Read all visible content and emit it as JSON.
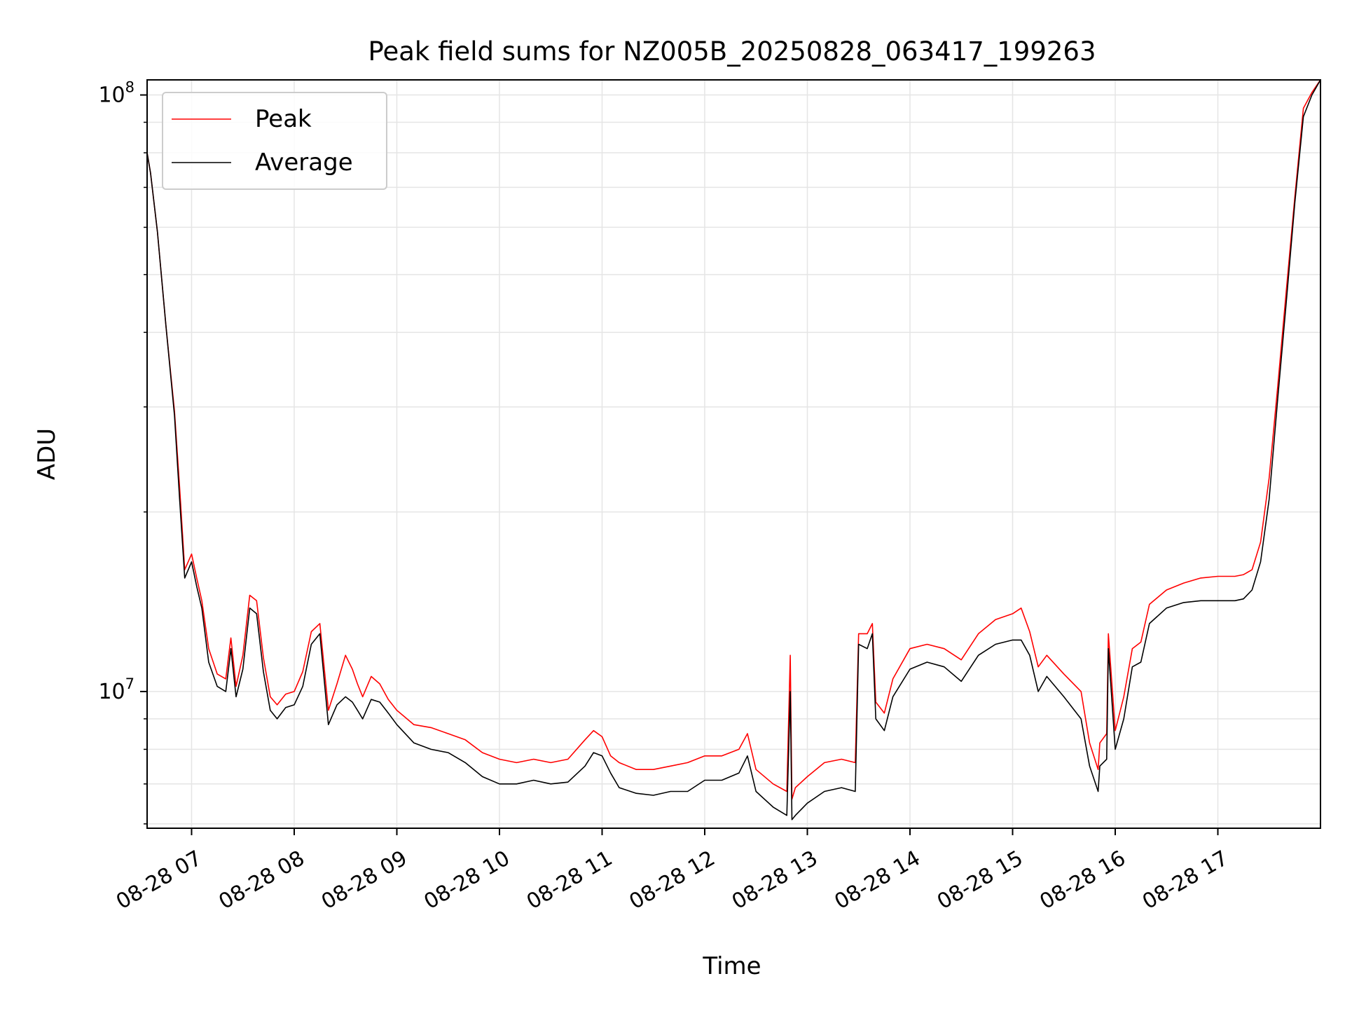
{
  "chart_data": {
    "type": "line",
    "title": "Peak field sums for NZ005B_20250828_063417_199263",
    "xlabel": "Time",
    "ylabel": "ADU",
    "y_scale": "log",
    "grid": true,
    "legend": "upper-left",
    "xlim": [
      "2025-08-28 06:34",
      "2025-08-28 18:00"
    ],
    "ylim": [
      5900000,
      106000000
    ],
    "x_ticks": [
      {
        "value": "2025-08-28 07:00",
        "label": "08-28 07"
      },
      {
        "value": "2025-08-28 08:00",
        "label": "08-28 08"
      },
      {
        "value": "2025-08-28 09:00",
        "label": "08-28 09"
      },
      {
        "value": "2025-08-28 10:00",
        "label": "08-28 10"
      },
      {
        "value": "2025-08-28 11:00",
        "label": "08-28 11"
      },
      {
        "value": "2025-08-28 12:00",
        "label": "08-28 12"
      },
      {
        "value": "2025-08-28 13:00",
        "label": "08-28 13"
      },
      {
        "value": "2025-08-28 14:00",
        "label": "08-28 14"
      },
      {
        "value": "2025-08-28 15:00",
        "label": "08-28 15"
      },
      {
        "value": "2025-08-28 16:00",
        "label": "08-28 16"
      },
      {
        "value": "2025-08-28 17:00",
        "label": "08-28 17"
      }
    ],
    "y_ticks": [
      {
        "value": 10000000,
        "base": "10",
        "exp": "7"
      },
      {
        "value": 100000000,
        "base": "10",
        "exp": "8"
      }
    ],
    "x": [
      "2025-08-28 06:34",
      "2025-08-28 06:36",
      "2025-08-28 06:40",
      "2025-08-28 06:45",
      "2025-08-28 06:50",
      "2025-08-28 06:53",
      "2025-08-28 06:56",
      "2025-08-28 07:00",
      "2025-08-28 07:03",
      "2025-08-28 07:06",
      "2025-08-28 07:10",
      "2025-08-28 07:15",
      "2025-08-28 07:20",
      "2025-08-28 07:23",
      "2025-08-28 07:26",
      "2025-08-28 07:30",
      "2025-08-28 07:34",
      "2025-08-28 07:38",
      "2025-08-28 07:42",
      "2025-08-28 07:46",
      "2025-08-28 07:50",
      "2025-08-28 07:55",
      "2025-08-28 08:00",
      "2025-08-28 08:05",
      "2025-08-28 08:10",
      "2025-08-28 08:15",
      "2025-08-28 08:20",
      "2025-08-28 08:25",
      "2025-08-28 08:30",
      "2025-08-28 08:34",
      "2025-08-28 08:37",
      "2025-08-28 08:40",
      "2025-08-28 08:45",
      "2025-08-28 08:50",
      "2025-08-28 08:55",
      "2025-08-28 09:00",
      "2025-08-28 09:10",
      "2025-08-28 09:20",
      "2025-08-28 09:30",
      "2025-08-28 09:40",
      "2025-08-28 09:50",
      "2025-08-28 10:00",
      "2025-08-28 10:10",
      "2025-08-28 10:20",
      "2025-08-28 10:30",
      "2025-08-28 10:40",
      "2025-08-28 10:50",
      "2025-08-28 10:55",
      "2025-08-28 11:00",
      "2025-08-28 11:05",
      "2025-08-28 11:10",
      "2025-08-28 11:20",
      "2025-08-28 11:30",
      "2025-08-28 11:40",
      "2025-08-28 11:50",
      "2025-08-28 12:00",
      "2025-08-28 12:10",
      "2025-08-28 12:20",
      "2025-08-28 12:25",
      "2025-08-28 12:30",
      "2025-08-28 12:40",
      "2025-08-28 12:48",
      "2025-08-28 12:50",
      "2025-08-28 12:51",
      "2025-08-28 12:53",
      "2025-08-28 13:00",
      "2025-08-28 13:10",
      "2025-08-28 13:20",
      "2025-08-28 13:28",
      "2025-08-28 13:30",
      "2025-08-28 13:35",
      "2025-08-28 13:38",
      "2025-08-28 13:40",
      "2025-08-28 13:45",
      "2025-08-28 13:50",
      "2025-08-28 14:00",
      "2025-08-28 14:10",
      "2025-08-28 14:20",
      "2025-08-28 14:30",
      "2025-08-28 14:40",
      "2025-08-28 14:50",
      "2025-08-28 15:00",
      "2025-08-28 15:05",
      "2025-08-28 15:10",
      "2025-08-28 15:15",
      "2025-08-28 15:20",
      "2025-08-28 15:30",
      "2025-08-28 15:40",
      "2025-08-28 15:45",
      "2025-08-28 15:50",
      "2025-08-28 15:51",
      "2025-08-28 15:55",
      "2025-08-28 15:56",
      "2025-08-28 16:00",
      "2025-08-28 16:05",
      "2025-08-28 16:10",
      "2025-08-28 16:15",
      "2025-08-28 16:20",
      "2025-08-28 16:30",
      "2025-08-28 16:40",
      "2025-08-28 16:50",
      "2025-08-28 17:00",
      "2025-08-28 17:10",
      "2025-08-28 17:15",
      "2025-08-28 17:20",
      "2025-08-28 17:25",
      "2025-08-28 17:30",
      "2025-08-28 17:35",
      "2025-08-28 17:40",
      "2025-08-28 17:45",
      "2025-08-28 17:50",
      "2025-08-28 17:55",
      "2025-08-28 18:00"
    ],
    "series": [
      {
        "name": "Average",
        "color": "#000000",
        "values": [
          80000000,
          74000000,
          59000000,
          41000000,
          29000000,
          21000000,
          15500000,
          16500000,
          15000000,
          13800000,
          11200000,
          10200000,
          10000000,
          11800000,
          9800000,
          10900000,
          13800000,
          13500000,
          10800000,
          9300000,
          9000000,
          9400000,
          9500000,
          10200000,
          12000000,
          12500000,
          8800000,
          9500000,
          9800000,
          9600000,
          9300000,
          9000000,
          9700000,
          9600000,
          9200000,
          8800000,
          8200000,
          8000000,
          7900000,
          7600000,
          7200000,
          7000000,
          7000000,
          7100000,
          7000000,
          7050000,
          7500000,
          7900000,
          7800000,
          7300000,
          6900000,
          6750000,
          6700000,
          6800000,
          6800000,
          7100000,
          7100000,
          7300000,
          7800000,
          6800000,
          6400000,
          6200000,
          10000000,
          6100000,
          6200000,
          6500000,
          6800000,
          6900000,
          6800000,
          12000000,
          11800000,
          12500000,
          9000000,
          8600000,
          9800000,
          10900000,
          11200000,
          11000000,
          10400000,
          11500000,
          12000000,
          12200000,
          12200000,
          11500000,
          10000000,
          10600000,
          9800000,
          9000000,
          7500000,
          6800000,
          7500000,
          7700000,
          11800000,
          8000000,
          9000000,
          11000000,
          11200000,
          13000000,
          13800000,
          14100000,
          14200000,
          14200000,
          14200000,
          14300000,
          14800000,
          16500000,
          21000000,
          31000000,
          45000000,
          66000000,
          92000000,
          100000000,
          106000000
        ]
      },
      {
        "name": "Peak",
        "color": "#ff0000",
        "values": [
          80000000,
          74000000,
          59000000,
          41000000,
          29500000,
          22000000,
          16000000,
          17000000,
          15500000,
          14200000,
          11800000,
          10700000,
          10500000,
          12300000,
          10200000,
          11500000,
          14500000,
          14200000,
          11400000,
          9800000,
          9500000,
          9900000,
          10000000,
          10800000,
          12600000,
          13000000,
          9300000,
          10300000,
          11500000,
          10900000,
          10300000,
          9800000,
          10600000,
          10300000,
          9700000,
          9300000,
          8800000,
          8700000,
          8500000,
          8300000,
          7900000,
          7700000,
          7600000,
          7700000,
          7600000,
          7700000,
          8300000,
          8600000,
          8400000,
          7800000,
          7600000,
          7400000,
          7400000,
          7500000,
          7600000,
          7800000,
          7800000,
          8000000,
          8500000,
          7400000,
          7000000,
          6800000,
          11500000,
          6600000,
          6900000,
          7200000,
          7600000,
          7700000,
          7600000,
          12500000,
          12500000,
          13000000,
          9600000,
          9200000,
          10500000,
          11800000,
          12000000,
          11800000,
          11300000,
          12500000,
          13200000,
          13500000,
          13800000,
          12600000,
          11000000,
          11500000,
          10700000,
          10000000,
          8200000,
          7400000,
          8200000,
          8500000,
          12500000,
          8600000,
          9800000,
          11800000,
          12100000,
          14000000,
          14800000,
          15200000,
          15500000,
          15600000,
          15600000,
          15700000,
          16000000,
          17800000,
          22800000,
          32500000,
          47000000,
          67500000,
          95000000,
          101000000,
          106000000
        ]
      }
    ],
    "legend_entries": [
      {
        "label": "Peak",
        "color": "#ff0000"
      },
      {
        "label": "Average",
        "color": "#000000"
      }
    ]
  }
}
